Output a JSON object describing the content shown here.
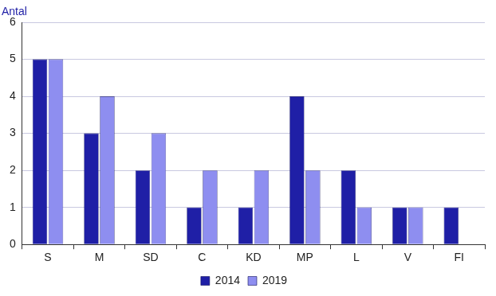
{
  "chart_data": {
    "type": "bar",
    "y_label": "Antal",
    "categories": [
      "S",
      "M",
      "SD",
      "C",
      "KD",
      "MP",
      "L",
      "V",
      "FI"
    ],
    "series": [
      {
        "name": "2014",
        "color": "#1f1fa6",
        "values": [
          5,
          3,
          2,
          1,
          1,
          4,
          2,
          1,
          1
        ]
      },
      {
        "name": "2019",
        "color": "#8e8ef0",
        "values": [
          5,
          4,
          3,
          2,
          2,
          2,
          1,
          1,
          0
        ]
      }
    ],
    "ylim": [
      0,
      6
    ],
    "yticks": [
      0,
      1,
      2,
      3,
      4,
      5,
      6
    ],
    "grid": true,
    "legend": "bottom"
  }
}
